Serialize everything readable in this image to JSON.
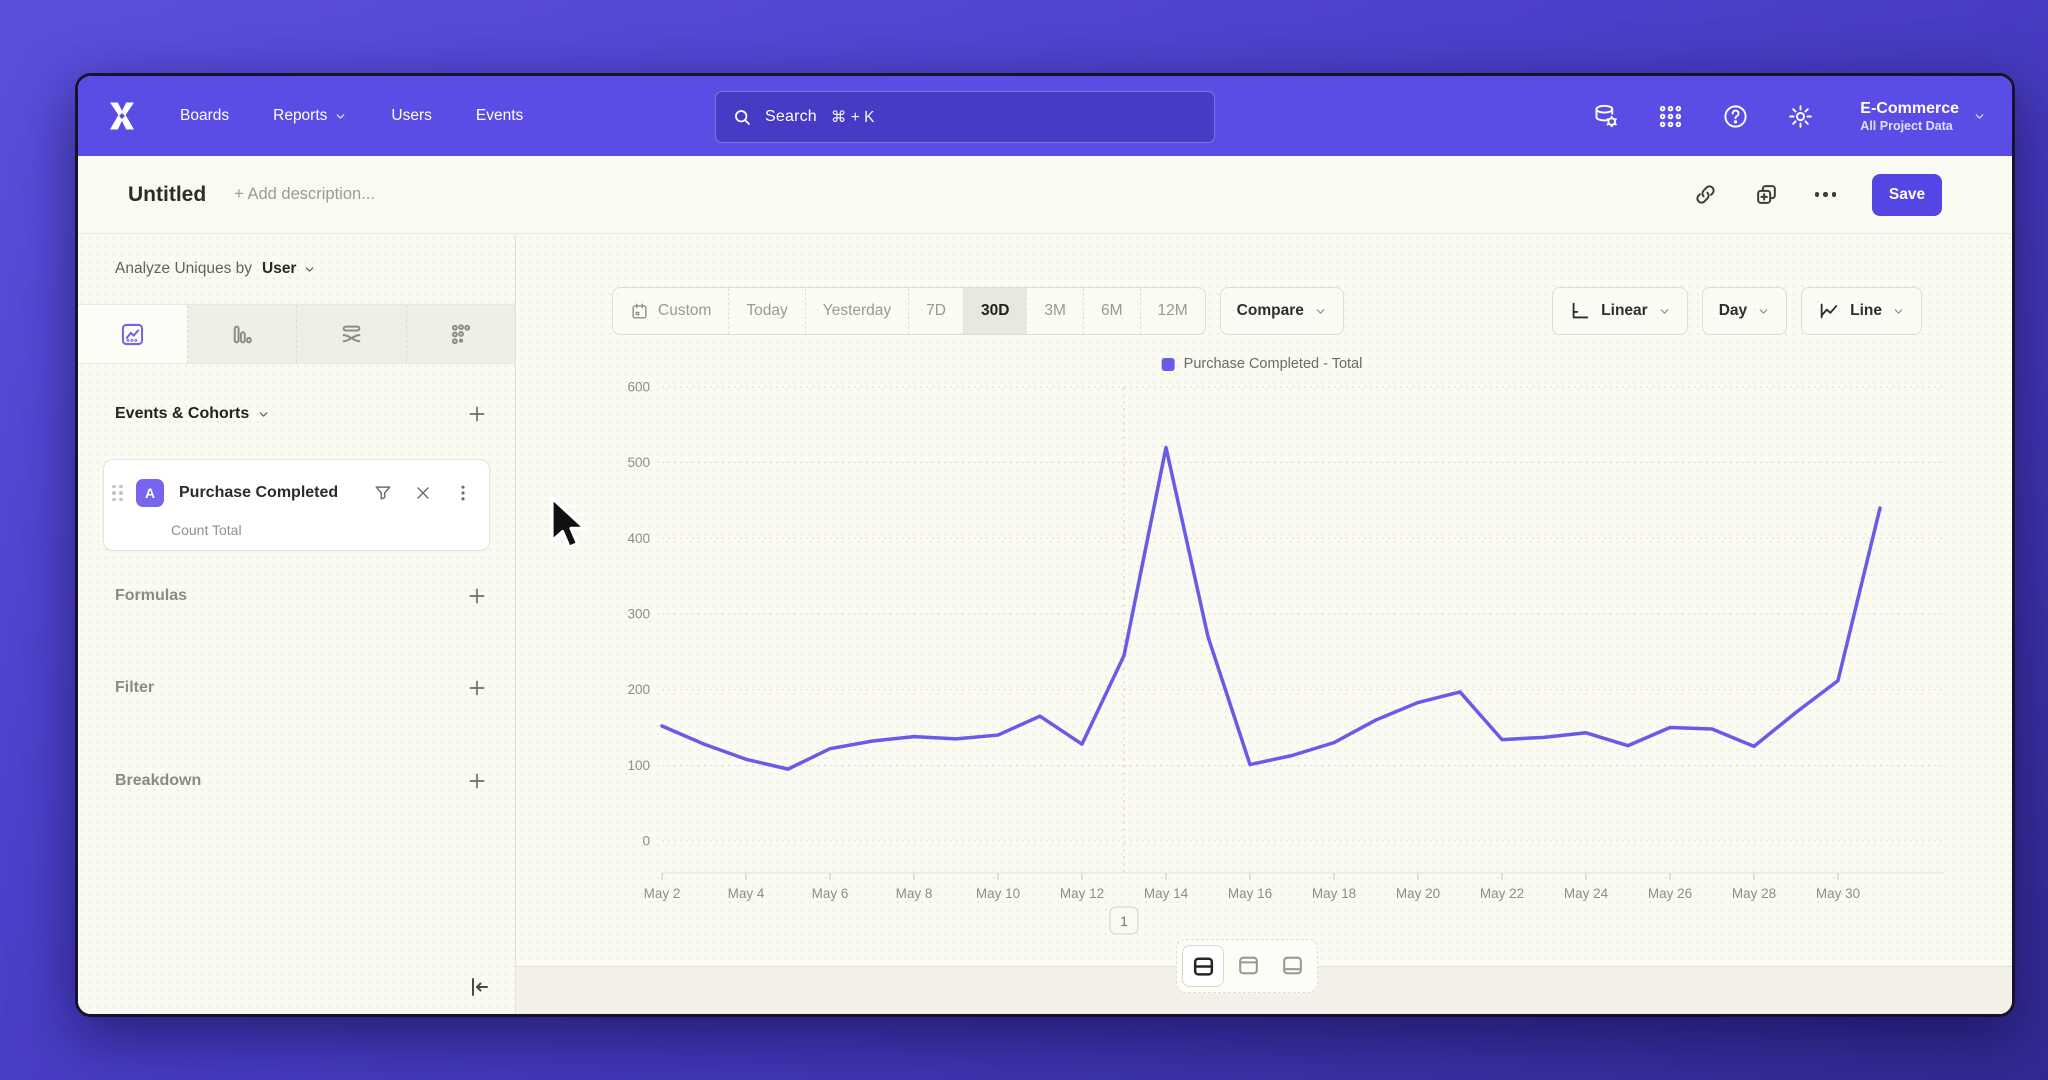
{
  "nav": {
    "items": [
      {
        "label": "Boards"
      },
      {
        "label": "Reports",
        "has_chevron": true
      },
      {
        "label": "Users"
      },
      {
        "label": "Events"
      }
    ],
    "search": {
      "placeholder": "Search",
      "shortcut": "⌘ + K"
    },
    "project": {
      "name": "E-Commerce",
      "subtitle": "All Project Data"
    }
  },
  "titlebar": {
    "title": "Untitled",
    "description_placeholder": "+ Add description...",
    "save_label": "Save"
  },
  "sidebar": {
    "analyze": {
      "prefix": "Analyze Uniques by",
      "selected": "User"
    },
    "view_tabs": [
      "line-chart",
      "bar-chart",
      "flow",
      "scatter"
    ],
    "active_view_tab": 0,
    "events_header": "Events & Cohorts",
    "event_card": {
      "badge": "A",
      "title": "Purchase Completed",
      "subtitle": "Count Total"
    },
    "sections": [
      {
        "label": "Formulas"
      },
      {
        "label": "Filter"
      },
      {
        "label": "Breakdown"
      }
    ]
  },
  "controls": {
    "ranges": [
      "Custom",
      "Today",
      "Yesterday",
      "7D",
      "30D",
      "3M",
      "6M",
      "12M"
    ],
    "active_range": "30D",
    "compare_label": "Compare",
    "scale_label": "Linear",
    "interval_label": "Day",
    "chart_type_label": "Line"
  },
  "chart_data": {
    "type": "line",
    "legend_position": "top-center",
    "grid": true,
    "x": [
      "May 2",
      "May 3",
      "May 4",
      "May 5",
      "May 6",
      "May 7",
      "May 8",
      "May 9",
      "May 10",
      "May 11",
      "May 12",
      "May 13",
      "May 14",
      "May 15",
      "May 16",
      "May 17",
      "May 18",
      "May 19",
      "May 20",
      "May 21",
      "May 22",
      "May 23",
      "May 24",
      "May 25",
      "May 26",
      "May 27",
      "May 28",
      "May 29",
      "May 30",
      "May 31"
    ],
    "x_label_every": 2,
    "series": [
      {
        "name": "Purchase Completed - Total",
        "color": "#6A5AE8",
        "values": [
          152,
          128,
          108,
          95,
          122,
          132,
          138,
          135,
          140,
          165,
          128,
          245,
          520,
          270,
          101,
          113,
          130,
          160,
          183,
          197,
          134,
          137,
          143,
          126,
          150,
          148,
          125,
          170,
          212,
          440
        ]
      }
    ],
    "ylim": [
      0,
      600
    ],
    "yticks": [
      0,
      100,
      200,
      300,
      400,
      500,
      600
    ],
    "annotation": {
      "label": "1",
      "x": "May 13"
    }
  },
  "footer": {
    "layout_options": [
      "split-rows",
      "focus-top",
      "focus-bottom"
    ],
    "active_layout": 0
  },
  "colors": {
    "accent": "#5445E5",
    "nav_bg": "#594DE6",
    "line": "#6A5AE8"
  }
}
